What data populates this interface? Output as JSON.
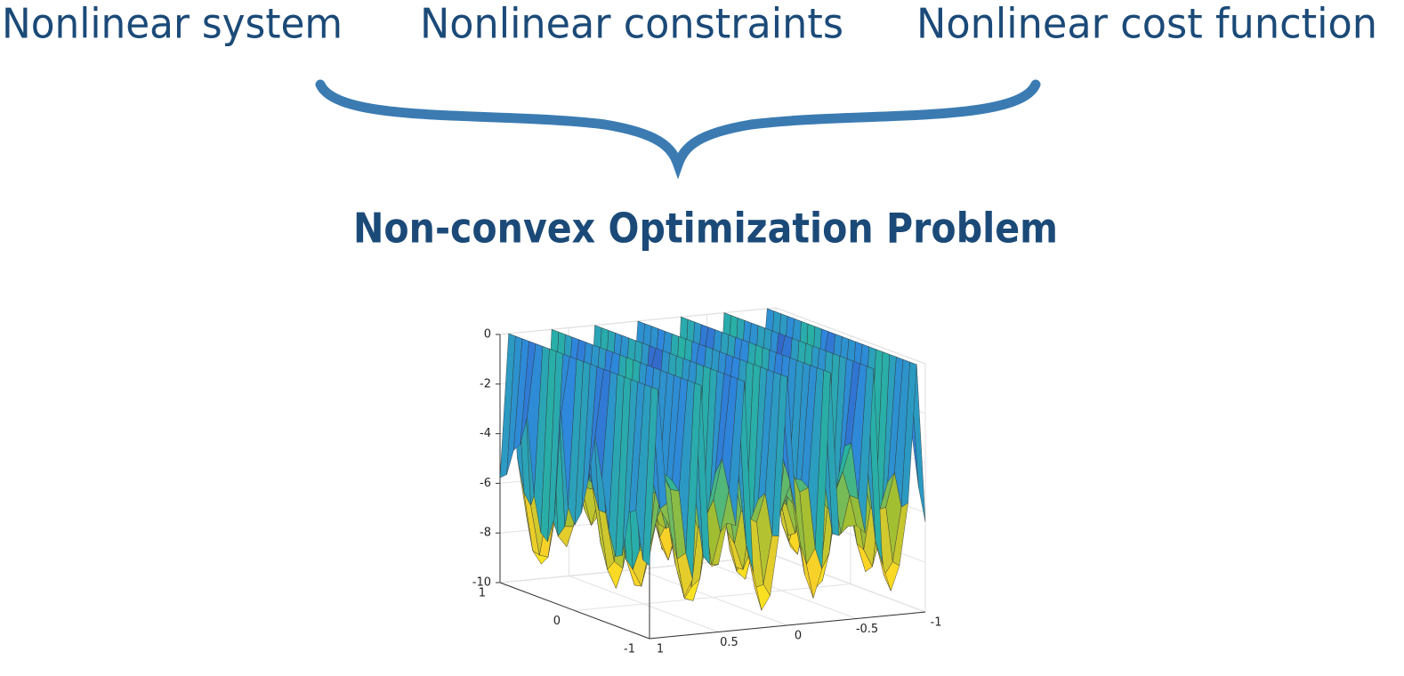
{
  "labels": [
    "Nonlinear system",
    "Nonlinear constraints",
    "Nonlinear cost function"
  ],
  "title": "Non-convex Optimization Problem",
  "plot": {
    "xlim": [
      -1,
      1
    ],
    "ylim": [
      -1,
      1
    ],
    "zlim": [
      -10,
      0
    ],
    "xticks": [
      1,
      0.5,
      0,
      -0.5,
      -1
    ],
    "yticks": [
      1,
      0,
      -1
    ],
    "zticks": [
      0,
      -2,
      -4,
      -6,
      -8,
      -10
    ]
  }
}
